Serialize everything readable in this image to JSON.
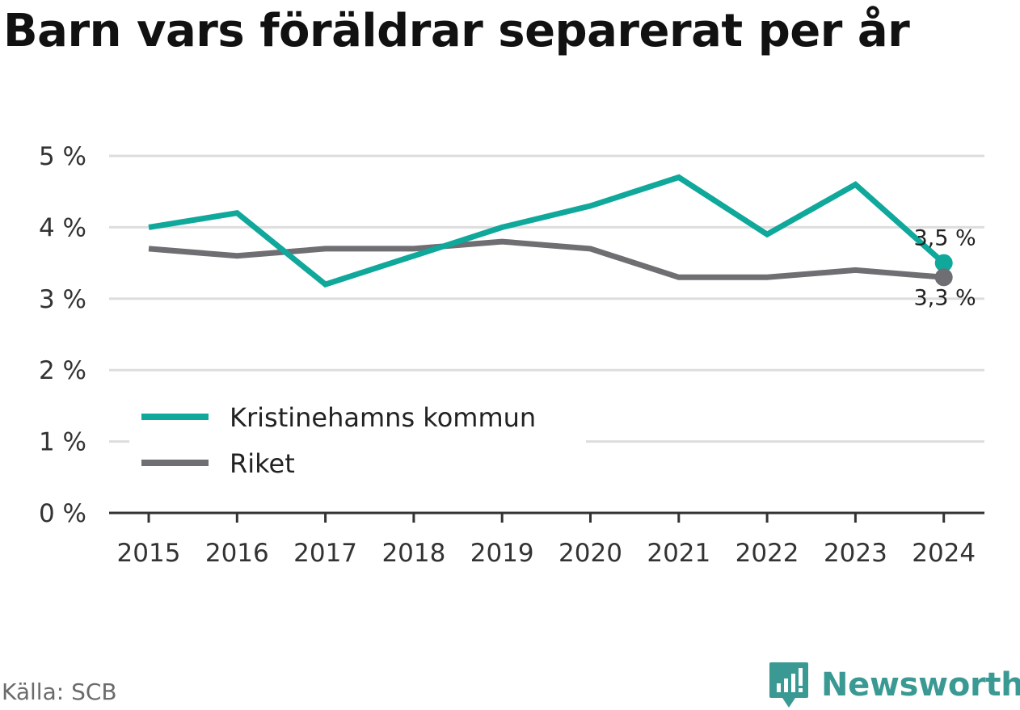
{
  "chart_data": {
    "type": "line",
    "title": "Barn vars föräldrar separerat per år",
    "xlabel": "",
    "ylabel": "",
    "x": [
      "2015",
      "2016",
      "2017",
      "2018",
      "2019",
      "2020",
      "2021",
      "2022",
      "2023",
      "2024"
    ],
    "ylim": [
      0,
      5
    ],
    "y_ticks": [
      "0 %",
      "1 %",
      "2 %",
      "3 %",
      "4 %",
      "5 %"
    ],
    "grid": "horizontal",
    "legend_position": "bottom-left",
    "series": [
      {
        "name": "Kristinehamns kommun",
        "color": "#0fa89b",
        "values": [
          4.0,
          4.2,
          3.2,
          3.6,
          4.0,
          4.3,
          4.7,
          3.9,
          4.6,
          3.5
        ],
        "end_label": "3,5 %"
      },
      {
        "name": "Riket",
        "color": "#6e6e73",
        "values": [
          3.7,
          3.6,
          3.7,
          3.7,
          3.8,
          3.7,
          3.3,
          3.3,
          3.4,
          3.3
        ],
        "end_label": "3,3 %"
      }
    ]
  },
  "source": "Källa: SCB",
  "brand": {
    "name": "Newsworthy",
    "logo_icon": "newsworthy-logo-icon",
    "color": "#3a9a93"
  }
}
